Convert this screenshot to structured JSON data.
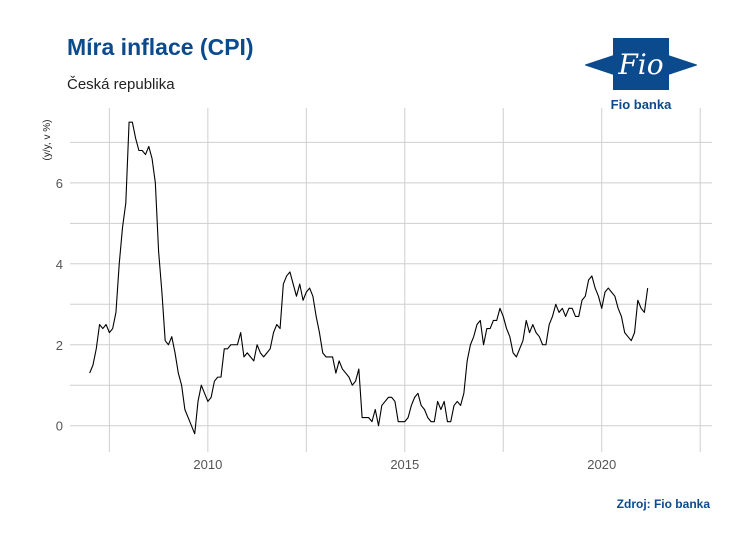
{
  "header": {
    "title": "Míra inflace (CPI)",
    "subtitle": "Česká republika"
  },
  "logo": {
    "mark_text": "Fio",
    "name": "Fio banka",
    "color": "#0b4a8c"
  },
  "source": "Zdroj: Fio banka",
  "chart_data": {
    "type": "line",
    "title": "Míra inflace (CPI)",
    "subtitle": "Česká republika",
    "xlabel": "",
    "ylabel": "(y/y, v %)",
    "xlim": [
      2006.5,
      2022.8
    ],
    "ylim": [
      -0.65,
      7.85
    ],
    "x_ticks": [
      2010,
      2015,
      2020
    ],
    "y_ticks": [
      0,
      2,
      4,
      6
    ],
    "grid": true,
    "line_color": "#000000",
    "series": [
      {
        "x_start": 2007.0,
        "x_step": 0.0833333,
        "values": [
          1.3,
          1.5,
          1.9,
          2.5,
          2.4,
          2.5,
          2.3,
          2.4,
          2.8,
          4.0,
          4.9,
          5.5,
          7.5,
          7.5,
          7.1,
          6.8,
          6.8,
          6.7,
          6.9,
          6.6,
          6.0,
          4.3,
          3.3,
          2.1,
          2.0,
          2.2,
          1.8,
          1.3,
          1.0,
          0.4,
          0.2,
          0.0,
          -0.2,
          0.6,
          1.0,
          0.8,
          0.6,
          0.7,
          1.1,
          1.2,
          1.2,
          1.9,
          1.9,
          2.0,
          2.0,
          2.0,
          2.3,
          1.7,
          1.8,
          1.7,
          1.6,
          2.0,
          1.8,
          1.7,
          1.8,
          1.9,
          2.3,
          2.5,
          2.4,
          3.5,
          3.7,
          3.8,
          3.5,
          3.2,
          3.5,
          3.1,
          3.3,
          3.4,
          3.2,
          2.7,
          2.3,
          1.8,
          1.7,
          1.7,
          1.7,
          1.3,
          1.6,
          1.4,
          1.3,
          1.2,
          1.0,
          1.1,
          1.4,
          0.2,
          0.2,
          0.2,
          0.1,
          0.4,
          0.0,
          0.5,
          0.6,
          0.7,
          0.7,
          0.6,
          0.1,
          0.1,
          0.1,
          0.2,
          0.5,
          0.7,
          0.8,
          0.5,
          0.4,
          0.2,
          0.1,
          0.1,
          0.6,
          0.4,
          0.6,
          0.1,
          0.1,
          0.5,
          0.6,
          0.5,
          0.8,
          1.6,
          2.0,
          2.2,
          2.5,
          2.6,
          2.0,
          2.4,
          2.4,
          2.6,
          2.6,
          2.9,
          2.7,
          2.4,
          2.2,
          1.8,
          1.7,
          1.9,
          2.1,
          2.6,
          2.3,
          2.5,
          2.3,
          2.2,
          2.0,
          2.0,
          2.5,
          2.7,
          3.0,
          2.8,
          2.9,
          2.7,
          2.9,
          2.9,
          2.7,
          2.7,
          3.1,
          3.2,
          3.6,
          3.7,
          3.4,
          3.2,
          2.9,
          3.3,
          3.4,
          3.3,
          3.2,
          2.9,
          2.7,
          2.3,
          2.2,
          2.1,
          2.3,
          3.1,
          2.9,
          2.8,
          3.4
        ]
      }
    ]
  }
}
